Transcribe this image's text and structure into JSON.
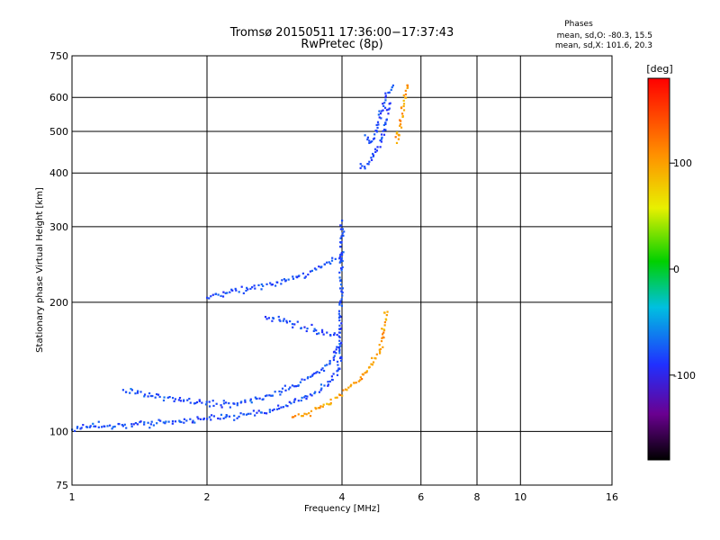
{
  "chart_data": {
    "type": "scatter",
    "title": "Tromsø 20150511 17:36:00−17:37:43",
    "subtitle": "RwPretec (8p)",
    "info_header": "Phases",
    "info_lines": [
      "mean, sd,O: -80.3, 15.5",
      "mean, sd,X: 101.6, 20.3"
    ],
    "xlabel": "Frequency [MHz]",
    "ylabel": "Stationary phase Virtual Height [km]",
    "x_scale": "log",
    "y_scale": "log",
    "xlim": [
      1,
      16
    ],
    "ylim": [
      75,
      750
    ],
    "x_ticks": [
      1,
      2,
      4,
      6,
      8,
      10,
      16
    ],
    "x_tick_labels": [
      "1",
      "2",
      "4",
      "6",
      "8",
      "10",
      "16"
    ],
    "x_gridlines": [
      1,
      2,
      4,
      6,
      8,
      10,
      16
    ],
    "y_ticks": [
      75,
      100,
      200,
      300,
      400,
      500,
      600,
      750
    ],
    "y_tick_labels": [
      "75",
      "100",
      "200",
      "300",
      "400",
      "500",
      "600",
      "750"
    ],
    "y_gridlines": [
      100,
      200,
      300,
      400,
      500,
      600
    ],
    "grid": true,
    "colorbar": {
      "label": "[deg]",
      "range": [
        -180,
        180
      ],
      "ticks": [
        100,
        0,
        -100
      ],
      "tick_labels": [
        "100",
        "0",
        "-100"
      ],
      "colormap": "rainbow (black–purple–blue–cyan–green–yellow–orange–red)"
    },
    "series": [
      {
        "name": "O",
        "phase_mean": -80.3,
        "phase_sd": 15.5,
        "traces": [
          {
            "x": [
              1.0,
              1.05,
              1.1,
              1.2,
              1.3,
              1.4,
              1.5,
              1.6,
              1.8,
              2.0,
              2.2,
              2.5,
              2.8,
              3.0,
              3.2,
              3.4,
              3.6,
              3.8,
              3.95
            ],
            "y": [
              101,
              102,
              103,
              103,
              103,
              104,
              104,
              105,
              106,
              107,
              108,
              110,
              112,
              115,
              118,
              122,
              126,
              132,
              140
            ]
          },
          {
            "x": [
              1.3,
              1.4,
              1.5,
              1.7,
              1.9,
              2.1,
              2.3,
              2.5,
              2.7,
              2.9,
              3.1,
              3.3,
              3.5,
              3.7,
              3.85,
              3.95
            ],
            "y": [
              125,
              123,
              121,
              119,
              117,
              116,
              116,
              118,
              121,
              124,
              128,
              132,
              137,
              143,
              150,
              160
            ]
          },
          {
            "x": [
              2.0,
              2.2,
              2.5,
              2.8,
              3.0,
              3.2,
              3.4,
              3.6,
              3.8,
              4.0
            ],
            "y": [
              205,
              210,
              215,
              220,
              225,
              230,
              236,
              242,
              250,
              258
            ]
          },
          {
            "x": [
              2.7,
              2.9,
              3.1,
              3.3,
              3.5,
              3.7,
              3.9
            ],
            "y": [
              185,
              182,
              178,
              175,
              172,
              170,
              168
            ]
          },
          {
            "x": [
              3.95,
              3.95,
              3.96,
              3.97,
              3.97,
              3.98,
              3.98,
              3.99,
              3.99,
              4.0
            ],
            "y": [
              140,
              155,
              170,
              185,
              200,
              220,
              240,
              260,
              285,
              310
            ]
          },
          {
            "x": [
              4.4,
              4.5,
              4.6,
              4.7,
              4.8,
              4.9,
              5.0,
              5.1
            ],
            "y": [
              420,
              410,
              425,
              440,
              460,
              480,
              520,
              580
            ]
          },
          {
            "x": [
              4.5,
              4.6,
              4.7,
              4.8,
              5.0,
              5.2
            ],
            "y": [
              490,
              470,
              480,
              510,
              600,
              640
            ]
          }
        ]
      },
      {
        "name": "X",
        "phase_mean": 101.6,
        "phase_sd": 20.3,
        "traces": [
          {
            "x": [
              3.1,
              3.3,
              3.5,
              3.7,
              3.9,
              4.1,
              4.3,
              4.5,
              4.7,
              4.85,
              4.95,
              5.05
            ],
            "y": [
              108,
              110,
              113,
              116,
              120,
              125,
              130,
              137,
              145,
              155,
              170,
              190
            ]
          },
          {
            "x": [
              5.3,
              5.35,
              5.4,
              5.45,
              5.5,
              5.55,
              5.6
            ],
            "y": [
              470,
              490,
              520,
              550,
              580,
              610,
              640
            ]
          }
        ]
      }
    ]
  }
}
